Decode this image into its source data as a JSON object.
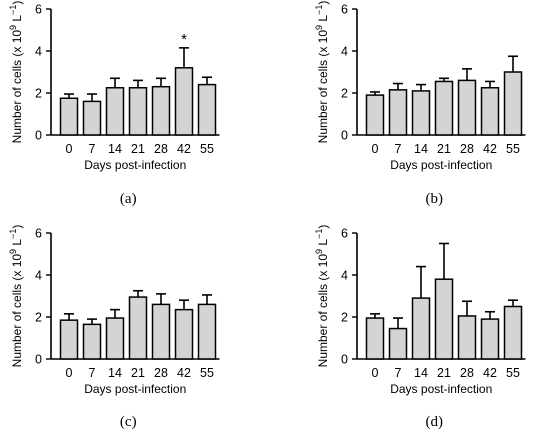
{
  "chart_data": [
    {
      "type": "bar",
      "panel_label": "(a)",
      "categories": [
        "0",
        "7",
        "14",
        "21",
        "28",
        "42",
        "55"
      ],
      "values": [
        1.75,
        1.6,
        2.25,
        2.25,
        2.3,
        3.2,
        2.4
      ],
      "errors": [
        0.2,
        0.35,
        0.45,
        0.35,
        0.4,
        0.95,
        0.35
      ],
      "annotations": [
        {
          "category": "42",
          "text": "*"
        }
      ],
      "xlabel": "Days post-infection",
      "ylabel": "Number of cells (x 10",
      "ylabel_sup": "9",
      "ylabel_unit": " L",
      "ylabel_unit_sup": "−1",
      "ylabel_close": ")",
      "ylim": [
        0,
        6
      ],
      "yticks": [
        "0",
        "2",
        "4",
        "6"
      ]
    },
    {
      "type": "bar",
      "panel_label": "(b)",
      "categories": [
        "0",
        "7",
        "14",
        "21",
        "28",
        "42",
        "55"
      ],
      "values": [
        1.9,
        2.15,
        2.1,
        2.55,
        2.6,
        2.25,
        3.0
      ],
      "errors": [
        0.15,
        0.3,
        0.3,
        0.15,
        0.55,
        0.3,
        0.75
      ],
      "annotations": [],
      "xlabel": "Days post-infection",
      "ylabel": "Number of cells (x 10",
      "ylabel_sup": "9",
      "ylabel_unit": " L",
      "ylabel_unit_sup": "−1",
      "ylabel_close": ")",
      "ylim": [
        0,
        6
      ],
      "yticks": [
        "0",
        "2",
        "4",
        "6"
      ]
    },
    {
      "type": "bar",
      "panel_label": "(c)",
      "categories": [
        "0",
        "7",
        "14",
        "21",
        "28",
        "42",
        "55"
      ],
      "values": [
        1.85,
        1.65,
        1.95,
        2.95,
        2.6,
        2.35,
        2.6
      ],
      "errors": [
        0.3,
        0.25,
        0.4,
        0.3,
        0.5,
        0.45,
        0.45
      ],
      "annotations": [],
      "xlabel": "Days post-infection",
      "ylabel": "Number of cells (x 10",
      "ylabel_sup": "9",
      "ylabel_unit": " L",
      "ylabel_unit_sup": "−1",
      "ylabel_close": ")",
      "ylim": [
        0,
        6
      ],
      "yticks": [
        "0",
        "2",
        "4",
        "6"
      ]
    },
    {
      "type": "bar",
      "panel_label": "(d)",
      "categories": [
        "0",
        "7",
        "14",
        "21",
        "28",
        "42",
        "55"
      ],
      "values": [
        1.95,
        1.45,
        2.9,
        3.8,
        2.05,
        1.9,
        2.5
      ],
      "errors": [
        0.2,
        0.5,
        1.5,
        1.7,
        0.7,
        0.35,
        0.3
      ],
      "annotations": [],
      "xlabel": "Days post-infection",
      "ylabel": "Number of cells (x 10",
      "ylabel_sup": "9",
      "ylabel_unit": " L",
      "ylabel_unit_sup": "−1",
      "ylabel_close": ")",
      "ylim": [
        0,
        6
      ],
      "yticks": [
        "0",
        "2",
        "4",
        "6"
      ]
    }
  ]
}
